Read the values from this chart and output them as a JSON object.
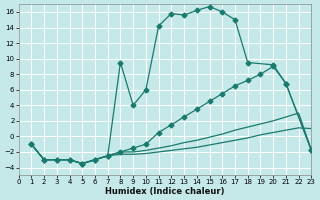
{
  "bg_color": "#c5e8e8",
  "grid_color": "#ffffff",
  "line_color": "#1a7a6e",
  "xlabel": "Humidex (Indice chaleur)",
  "xlim": [
    0,
    23
  ],
  "ylim": [
    -5,
    17
  ],
  "yticks": [
    -4,
    -2,
    0,
    2,
    4,
    6,
    8,
    10,
    12,
    14,
    16
  ],
  "xticks": [
    0,
    1,
    2,
    3,
    4,
    5,
    6,
    7,
    8,
    9,
    10,
    11,
    12,
    13,
    14,
    15,
    16,
    17,
    18,
    19,
    20,
    21,
    22,
    23
  ],
  "main_curve_x": [
    1,
    2,
    3,
    4,
    5,
    6,
    7,
    8,
    9,
    10,
    11,
    12,
    13,
    14,
    15,
    16,
    17,
    18,
    20,
    21,
    23
  ],
  "main_curve_y": [
    -1.0,
    -3.0,
    -3.0,
    -3.0,
    -3.5,
    -3.0,
    -2.5,
    9.5,
    4.0,
    6.0,
    14.2,
    15.8,
    15.6,
    16.2,
    16.7,
    16.0,
    15.0,
    9.5,
    9.2,
    6.8,
    -1.8
  ],
  "upper_diag_x": [
    1,
    2,
    3,
    4,
    5,
    6,
    7,
    8,
    9,
    10,
    11,
    12,
    13,
    14,
    15,
    16,
    17,
    18,
    19,
    20,
    21,
    23
  ],
  "upper_diag_y": [
    -1.0,
    -3.0,
    -3.0,
    -3.0,
    -3.5,
    -3.0,
    -2.5,
    -2.0,
    -1.5,
    -1.0,
    0.5,
    1.5,
    2.5,
    3.5,
    4.5,
    5.5,
    6.5,
    7.2,
    8.0,
    9.0,
    6.8,
    -1.8
  ],
  "mid_diag_x": [
    1,
    2,
    3,
    4,
    5,
    6,
    7,
    8,
    9,
    10,
    11,
    12,
    13,
    14,
    15,
    16,
    17,
    18,
    19,
    20,
    21,
    22,
    23
  ],
  "mid_diag_y": [
    -1.0,
    -3.0,
    -3.0,
    -3.0,
    -3.5,
    -3.0,
    -2.5,
    -2.0,
    -2.0,
    -1.8,
    -1.5,
    -1.2,
    -0.8,
    -0.5,
    -0.1,
    0.3,
    0.8,
    1.2,
    1.6,
    2.0,
    2.5,
    3.0,
    -1.8
  ],
  "low_flat_x": [
    1,
    2,
    3,
    4,
    5,
    6,
    7,
    8,
    9,
    10,
    11,
    12,
    13,
    14,
    15,
    16,
    17,
    18,
    19,
    20,
    21,
    22,
    23
  ],
  "low_flat_y": [
    -1.0,
    -3.0,
    -3.0,
    -3.0,
    -3.5,
    -3.0,
    -2.5,
    -2.3,
    -2.3,
    -2.2,
    -2.0,
    -1.8,
    -1.6,
    -1.4,
    -1.1,
    -0.8,
    -0.5,
    -0.2,
    0.2,
    0.5,
    0.8,
    1.1,
    1.0
  ]
}
